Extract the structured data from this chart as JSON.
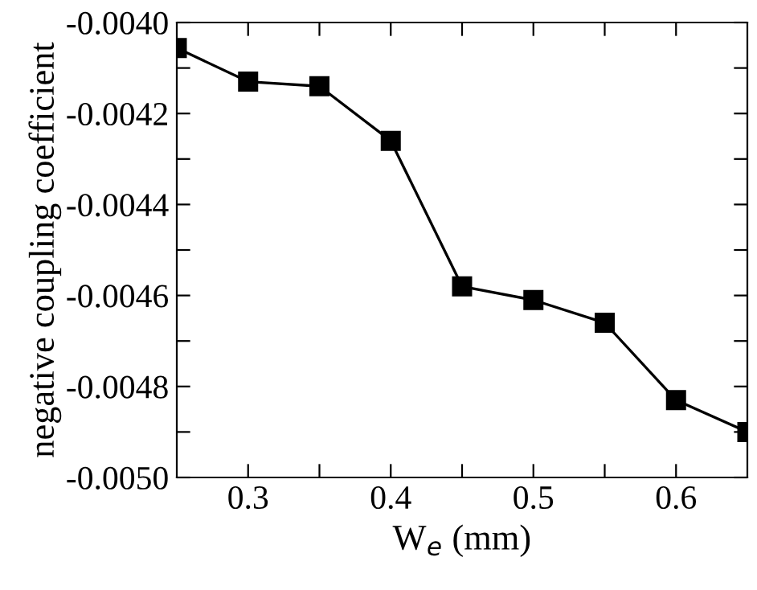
{
  "chart_data": {
    "type": "line",
    "xlabel": "W$_{e}$ (mm)",
    "ylabel": "negative coupling coefficient",
    "x": [
      0.25,
      0.3,
      0.35,
      0.4,
      0.45,
      0.5,
      0.55,
      0.6,
      0.65
    ],
    "series": [
      {
        "color": "#000000",
        "values": [
          -0.004056,
          -0.00413,
          -0.00414,
          -0.00426,
          -0.00458,
          -0.00461,
          -0.00466,
          -0.00483,
          -0.0049
        ]
      }
    ],
    "xlim": [
      0.25,
      0.65
    ],
    "xticks": [
      0.3,
      {
        "value": 0.35,
        "label": null
      },
      0.4,
      {
        "value": 0.45,
        "label": null
      },
      0.5,
      {
        "value": 0.55,
        "label": null
      },
      0.6
    ],
    "ylim": [
      -0.005,
      -0.004
    ],
    "yticks": [
      {
        "value": -0.004,
        "label": "-0.0040"
      },
      {
        "value": -0.0041,
        "label": null
      },
      {
        "value": -0.0042,
        "label": "-0.0042"
      },
      {
        "value": -0.0043,
        "label": null
      },
      {
        "value": -0.0044,
        "label": "-0.0044"
      },
      {
        "value": -0.0045,
        "label": null
      },
      {
        "value": -0.0046,
        "label": "-0.0046"
      },
      {
        "value": -0.0047,
        "label": null
      },
      {
        "value": -0.0048,
        "label": "-0.0048"
      },
      {
        "value": -0.0049,
        "label": null
      },
      {
        "value": -0.005,
        "label": "-0.0050"
      }
    ],
    "marker": "square",
    "line_style": "solid",
    "grid": false,
    "legend": false
  }
}
